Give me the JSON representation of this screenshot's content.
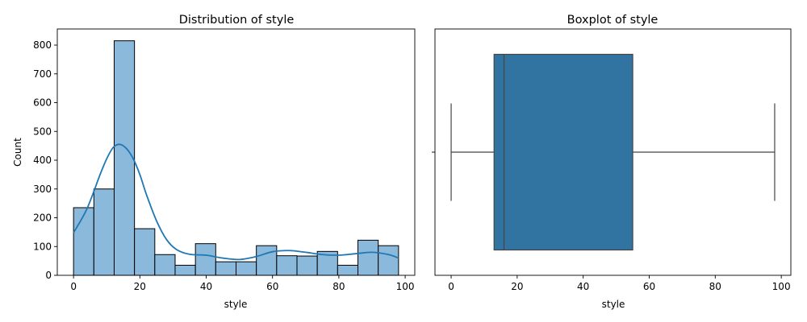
{
  "chart_data": [
    {
      "type": "bar",
      "title": "Distribution of style",
      "xlabel": "style",
      "ylabel": "Count",
      "xlim": [
        -4.9,
        102.9
      ],
      "ylim": [
        0,
        856
      ],
      "x_ticks": [
        0,
        20,
        40,
        60,
        80,
        100
      ],
      "y_ticks": [
        0,
        100,
        200,
        300,
        400,
        500,
        600,
        700,
        800
      ],
      "bin_edges": [
        0,
        6.125,
        12.25,
        18.375,
        24.5,
        30.625,
        36.75,
        42.875,
        49,
        55.125,
        61.25,
        67.375,
        73.5,
        79.625,
        85.75,
        91.875,
        98
      ],
      "values": [
        235,
        300,
        815,
        162,
        72,
        35,
        110,
        47,
        47,
        103,
        68,
        67,
        83,
        35,
        122,
        103
      ],
      "kde": {
        "x": [
          0,
          4,
          8,
          10,
          12,
          14,
          16,
          18,
          20,
          22,
          25,
          28,
          31,
          35,
          40,
          45,
          50,
          55,
          60,
          65,
          70,
          75,
          80,
          85,
          90,
          95,
          98
        ],
        "y": [
          148,
          230,
          350,
          405,
          445,
          455,
          440,
          405,
          350,
          280,
          190,
          125,
          90,
          73,
          70,
          60,
          55,
          65,
          82,
          86,
          80,
          72,
          70,
          75,
          80,
          72,
          60
        ]
      },
      "bar_color": "#8bb9dc",
      "line_color": "#1f77b4"
    },
    {
      "type": "boxplot",
      "title": "Boxplot of style",
      "xlabel": "style",
      "xlim": [
        -4.9,
        102.9
      ],
      "x_ticks": [
        0,
        20,
        40,
        60,
        80,
        100
      ],
      "y_ticks": [
        ""
      ],
      "box": {
        "whisker_low": 0,
        "q1": 13,
        "median": 16,
        "q3": 55,
        "whisker_high": 98
      },
      "box_color": "#3274a1"
    }
  ]
}
